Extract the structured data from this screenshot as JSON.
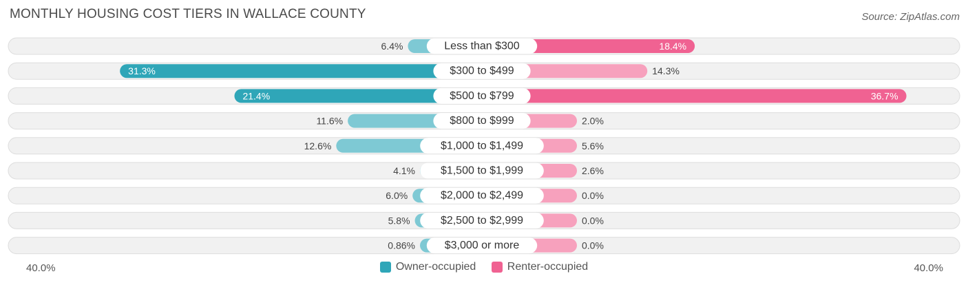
{
  "title": "MONTHLY HOUSING COST TIERS IN WALLACE COUNTY",
  "source": "Source: ZipAtlas.com",
  "colors": {
    "owner": "#2fa6b8",
    "owner_light": "#7ec9d4",
    "renter": "#f06292",
    "renter_light": "#f7a1bd",
    "row_bg": "#f1f1f1"
  },
  "chart_data": {
    "type": "bar",
    "orientation": "diverging-horizontal",
    "title": "MONTHLY HOUSING COST TIERS IN WALLACE COUNTY",
    "categories": [
      "Less than $300",
      "$300 to $499",
      "$500 to $799",
      "$800 to $999",
      "$1,000 to $1,499",
      "$1,500 to $1,999",
      "$2,000 to $2,499",
      "$2,500 to $2,999",
      "$3,000 or more"
    ],
    "series": [
      {
        "name": "Owner-occupied",
        "values": [
          6.4,
          31.3,
          21.4,
          11.6,
          12.6,
          4.1,
          6.0,
          5.8,
          0.86
        ],
        "labels": [
          "6.4%",
          "31.3%",
          "21.4%",
          "11.6%",
          "12.6%",
          "4.1%",
          "6.0%",
          "5.8%",
          "0.86%"
        ]
      },
      {
        "name": "Renter-occupied",
        "values": [
          18.4,
          14.3,
          36.7,
          2.0,
          5.6,
          2.6,
          0.0,
          0.0,
          0.0
        ],
        "labels": [
          "18.4%",
          "14.3%",
          "36.7%",
          "2.0%",
          "5.6%",
          "2.6%",
          "0.0%",
          "0.0%",
          "0.0%"
        ]
      }
    ],
    "axis_min_label": "40.0%",
    "axis_max_label": "40.0%",
    "xlim": [
      -40,
      40
    ],
    "legend_position": "bottom-center"
  }
}
